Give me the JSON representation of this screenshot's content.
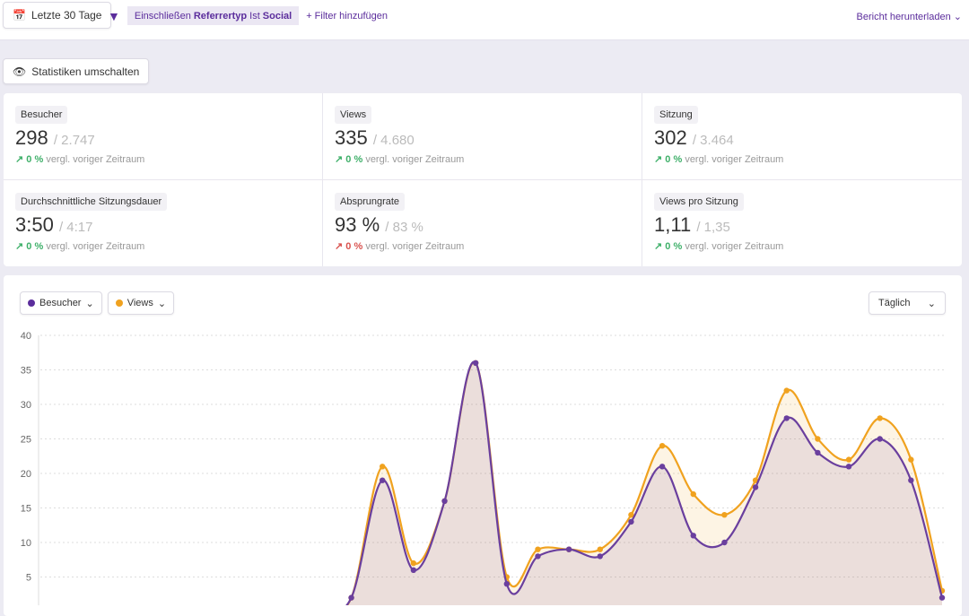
{
  "topbar": {
    "date_range": "Letzte 30 Tage",
    "filter": {
      "prefix": "Einschließen",
      "field": "Referrertyp",
      "op": "Ist",
      "value": "Social"
    },
    "add_filter": "+ Filter hinzufügen",
    "download": "Bericht herunterladen"
  },
  "toggle_stats": "Statistiken umschalten",
  "stats": [
    {
      "label": "Besucher",
      "value": "298",
      "prev": "/ 2.747",
      "change": "0 %",
      "trend": "up-good",
      "compare": "vergl. voriger Zeitraum"
    },
    {
      "label": "Views",
      "value": "335",
      "prev": "/ 4.680",
      "change": "0 %",
      "trend": "up-good",
      "compare": "vergl. voriger Zeitraum"
    },
    {
      "label": "Sitzung",
      "value": "302",
      "prev": "/ 3.464",
      "change": "0 %",
      "trend": "up-good",
      "compare": "vergl. voriger Zeitraum"
    },
    {
      "label": "Durchschnittliche Sitzungsdauer",
      "value": "3:50",
      "prev": "/ 4:17",
      "change": "0 %",
      "trend": "up-good",
      "compare": "vergl. voriger Zeitraum"
    },
    {
      "label": "Absprungrate",
      "value": "93 %",
      "prev": "/ 83 %",
      "change": "0 %",
      "trend": "up-bad",
      "compare": "vergl. voriger Zeitraum"
    },
    {
      "label": "Views pro Sitzung",
      "value": "1,11",
      "prev": "/ 1,35",
      "change": "0 %",
      "trend": "up-good",
      "compare": "vergl. voriger Zeitraum"
    }
  ],
  "chart_controls": {
    "series1": "Besucher",
    "series2": "Views",
    "interval": "Täglich"
  },
  "colors": {
    "visitors": "#6a3f9e",
    "views": "#f0a21f",
    "accent": "#5b2d9c"
  },
  "chart_data": {
    "type": "area",
    "ylim": [
      0,
      40
    ],
    "yticks": [
      "5",
      "10",
      "15",
      "20",
      "25",
      "30",
      "35",
      "40"
    ],
    "grid": true,
    "series": [
      {
        "name": "Besucher",
        "values": [
          0,
          0,
          0,
          0,
          0,
          0,
          0,
          0,
          0,
          0,
          2,
          19,
          6,
          16,
          36,
          4,
          8,
          9,
          8,
          13,
          21,
          11,
          10,
          18,
          28,
          23,
          21,
          25,
          19,
          2
        ]
      },
      {
        "name": "Views",
        "values": [
          0,
          0,
          0,
          0,
          0,
          0,
          0,
          0,
          0,
          0,
          2,
          21,
          7,
          16,
          36,
          5,
          9,
          9,
          9,
          14,
          24,
          17,
          14,
          19,
          32,
          25,
          22,
          28,
          22,
          3
        ]
      }
    ]
  }
}
